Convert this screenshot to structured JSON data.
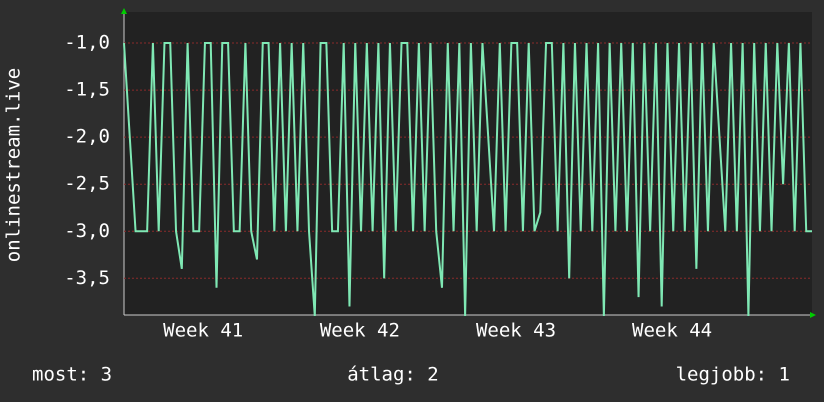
{
  "chart_data": {
    "type": "line",
    "y_label": "onlinestream.live",
    "x": [
      0,
      1,
      2,
      3,
      4,
      5,
      6,
      7,
      8,
      9,
      10,
      11,
      12,
      13,
      14,
      15,
      16,
      17,
      18,
      19,
      20,
      21,
      22,
      23,
      24,
      25,
      26,
      27,
      28,
      29,
      30,
      31,
      32,
      33,
      34,
      35,
      36,
      37,
      38,
      39,
      40,
      41,
      42,
      43,
      44,
      45,
      46,
      47,
      48,
      49,
      50,
      51,
      52,
      53,
      54,
      55,
      56,
      57,
      58,
      59,
      60,
      61,
      62,
      63,
      64,
      65,
      66,
      67,
      68,
      69,
      70,
      71,
      72,
      73,
      74,
      75,
      76,
      77,
      78,
      79,
      80,
      81,
      82,
      83,
      84,
      85,
      86,
      87,
      88,
      89,
      90,
      91,
      92,
      93,
      94,
      95,
      96,
      97,
      98,
      99,
      100,
      101,
      102,
      103,
      104,
      105,
      106,
      107,
      108,
      109,
      110,
      111,
      112,
      113,
      114,
      115,
      116,
      117,
      118,
      119
    ],
    "series": [
      {
        "color": "#7fe8b4",
        "values": [
          -1,
          -2,
          -3,
          -3,
          -3,
          -1,
          -3,
          -1,
          -1,
          -3,
          -3.4,
          -1,
          -3,
          -3,
          -1,
          -1,
          -3.6,
          -1,
          -1,
          -3,
          -3,
          -1,
          -3,
          -3.3,
          -1,
          -1,
          -3,
          -1,
          -3,
          -1,
          -3,
          -1,
          -3,
          -3.9,
          -1,
          -1,
          -3,
          -3,
          -1,
          -3.8,
          -1,
          -3,
          -1,
          -3,
          -1,
          -3.5,
          -1,
          -3,
          -1,
          -1,
          -3,
          -1,
          -3,
          -1,
          -3,
          -3.6,
          -1,
          -3,
          -1,
          -3.9,
          -1,
          -3,
          -1,
          -2,
          -3,
          -1,
          -3,
          -1,
          -1,
          -3,
          -1,
          -3,
          -2.8,
          -1,
          -1,
          -3,
          -1,
          -3.5,
          -1,
          -3,
          -1,
          -3,
          -1,
          -3.9,
          -1,
          -3,
          -1,
          -3,
          -1,
          -3.7,
          -1,
          -3,
          -1,
          -3.8,
          -1,
          -3,
          -1,
          -3,
          -1,
          -3.4,
          -1,
          -3,
          -1,
          -2,
          -3,
          -1,
          -3,
          -1,
          -3.9,
          -1,
          -3,
          -1,
          -3,
          -1,
          -2.5,
          -1,
          -3,
          -1,
          -3,
          -3
        ]
      }
    ],
    "xlim": [
      0,
      119
    ],
    "xticks": [
      {
        "value": 13.7,
        "label": "Week 41"
      },
      {
        "value": 40.8,
        "label": "Week 42"
      },
      {
        "value": 67.8,
        "label": "Week 43"
      },
      {
        "value": 94.8,
        "label": "Week 44"
      }
    ],
    "ylim": [
      -3.89,
      -0.67
    ],
    "yticks": [
      {
        "value": -1,
        "label": "-1,0"
      },
      {
        "value": -1.5,
        "label": "-1,5"
      },
      {
        "value": -2,
        "label": "-2,0"
      },
      {
        "value": -2.5,
        "label": "-2,5"
      },
      {
        "value": -3,
        "label": "-3,0"
      },
      {
        "value": -3.5,
        "label": "-3,5"
      }
    ],
    "grid": true,
    "stats": [
      "most: 3",
      "átlag: 2",
      "legjobb: 1"
    ]
  }
}
